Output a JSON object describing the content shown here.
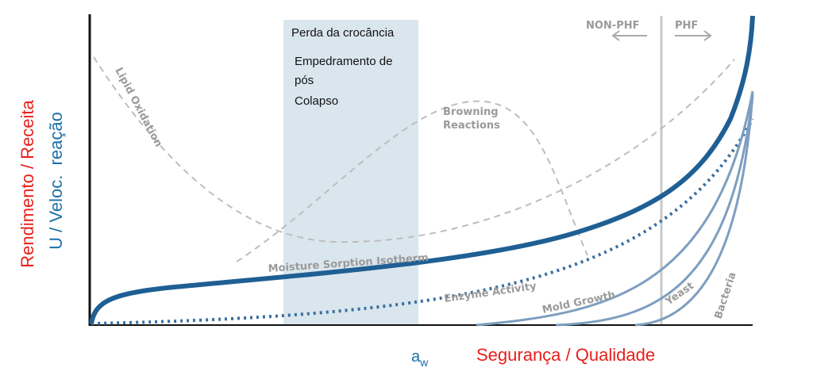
{
  "y_axis_labels": {
    "outer": "Rendimento / Receita",
    "inner": "U / Veloc.  reação"
  },
  "band": {
    "lines": [
      "Perda da crocância",
      "Empedramento de",
      "pós",
      "Colapso"
    ]
  },
  "zones": {
    "left": "NON-PHF",
    "right": "PHF"
  },
  "curves": {
    "lipid": "Lipid Oxidation",
    "browning": [
      "Browning",
      "Reactions"
    ],
    "isotherm": "Moisture Sorption Isotherm",
    "enzyme": "Enzyme Activity",
    "mold": "Mold Growth",
    "yeast": "Yeast",
    "bacteria": "Bacteria"
  },
  "x_axis": {
    "symbol": {
      "base": "a",
      "subscript": "w"
    },
    "label": "Segurança / Qualidade"
  }
}
